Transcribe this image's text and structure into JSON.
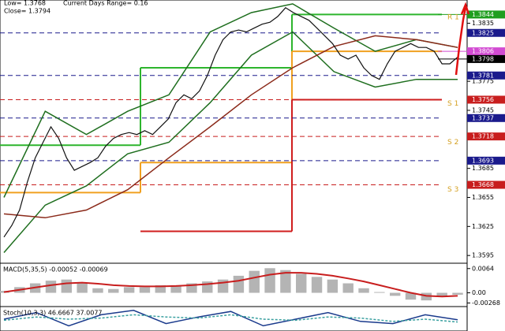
{
  "chart_data": {
    "type": "line",
    "annotations": [
      "Low= 1.3768",
      "Current Days Range= 0.16",
      "Close= 1.3794"
    ],
    "ylim": [
      1.3587,
      1.3859
    ],
    "yticks": [
      1.3835,
      1.3775,
      1.3745,
      1.3685,
      1.3655,
      1.3625,
      1.3595
    ],
    "levels": [
      {
        "value": 1.3844,
        "color": "#1f9e1f",
        "text_color": "#ffffff",
        "dashed": false
      },
      {
        "value": 1.3825,
        "color": "#1a1a8c",
        "text_color": "#ffffff",
        "dashed": true
      },
      {
        "value": 1.3806,
        "color": "#d24bd2",
        "text_color": "#ffffff",
        "dashed": false
      },
      {
        "value": 1.3798,
        "color": "#000000",
        "text_color": "#ffffff",
        "dashed": false
      },
      {
        "value": 1.3781,
        "color": "#1a1a8c",
        "text_color": "#ffffff",
        "dashed": true
      },
      {
        "value": 1.3756,
        "color": "#c81e1e",
        "text_color": "#ffffff",
        "dashed": true
      },
      {
        "value": 1.3737,
        "color": "#1a1a8c",
        "text_color": "#ffffff",
        "dashed": true
      },
      {
        "value": 1.3718,
        "color": "#c81e1e",
        "text_color": "#ffffff",
        "dashed": true
      },
      {
        "value": 1.3693,
        "color": "#1a1a8c",
        "text_color": "#ffffff",
        "dashed": true
      },
      {
        "value": 1.3668,
        "color": "#c81e1e",
        "text_color": "#ffffff",
        "dashed": true
      }
    ],
    "pivot_labels": [
      {
        "text": "R 1",
        "value": 1.3841
      },
      {
        "text": "S 1",
        "value": 1.3752
      },
      {
        "text": "S 2",
        "value": 1.3712
      },
      {
        "text": "S 3",
        "value": 1.3663
      }
    ],
    "series": [
      {
        "color": "#1e6e1e",
        "values": [
          1.3655,
          1.3744,
          1.372,
          1.3744,
          1.3761,
          1.3826,
          1.3846,
          1.3855,
          1.383,
          1.3806,
          1.3818,
          1.381
        ]
      },
      {
        "color": "#1e6e1e",
        "values": [
          1.3598,
          1.3647,
          1.3667,
          1.37,
          1.3712,
          1.3753,
          1.3802,
          1.3826,
          1.3785,
          1.3769,
          1.3777,
          1.3777
        ]
      },
      {
        "color": "#8b2a1a",
        "values": [
          1.3638,
          1.3634,
          1.3642,
          1.3663,
          1.3696,
          1.3728,
          1.3761,
          1.3789,
          1.3811,
          1.3822,
          1.3818,
          1.381
        ]
      },
      {
        "color": "#111111",
        "values": [
          1.3614,
          1.3626,
          1.3642,
          1.3671,
          1.3696,
          1.3712,
          1.3728,
          1.3716,
          1.3696,
          1.3683,
          1.3687,
          1.3691,
          1.3696,
          1.3708,
          1.3716,
          1.372,
          1.3722,
          1.372,
          1.3724,
          1.372,
          1.3728,
          1.3736,
          1.3753,
          1.3761,
          1.3757,
          1.3765,
          1.3781,
          1.3802,
          1.3818,
          1.3826,
          1.3828,
          1.3826,
          1.383,
          1.3834,
          1.3836,
          1.3842,
          1.3851,
          1.3846,
          1.3842,
          1.3838,
          1.383,
          1.3822,
          1.3814,
          1.3802,
          1.3798,
          1.3802,
          1.3789,
          1.3781,
          1.3777,
          1.3793,
          1.3806,
          1.381,
          1.3814,
          1.381,
          1.381,
          1.3806,
          1.3793,
          1.3793,
          1.38
        ]
      }
    ],
    "pivot_history": [
      {
        "color": "#2db52d",
        "values": [
          1.3709,
          1.3789,
          1.3844
        ]
      },
      {
        "color": "#f0a020",
        "values": [
          1.366,
          1.3691,
          1.3806
        ]
      },
      {
        "color": "#d01e1e",
        "values": [
          null,
          1.362,
          1.3756
        ]
      }
    ],
    "macd": {
      "label": "MACD(5,35,5) -0.00052 -0.00069",
      "ylim": [
        -0.0028,
        0.0076
      ],
      "yticks": [
        0.0064,
        {
          "value": 0,
          "label": "0.00"
        },
        -0.00268
      ],
      "histogram": {
        "color": "#b4b4b4",
        "values": [
          0.0005,
          0.0015,
          0.0025,
          0.0032,
          0.0035,
          0.0025,
          0.0012,
          0.001,
          0.0015,
          0.0015,
          0.002,
          0.002,
          0.0025,
          0.003,
          0.0035,
          0.0045,
          0.0058,
          0.0065,
          0.006,
          0.005,
          0.0042,
          0.0035,
          0.0025,
          0.0012,
          0.0002,
          -0.0008,
          -0.0018,
          -0.002,
          -0.001,
          -0.0005
        ]
      },
      "signal": {
        "color": "#c81e1e",
        "values": [
          0.0002,
          0.0008,
          0.0014,
          0.002,
          0.0025,
          0.0027,
          0.0024,
          0.002,
          0.0018,
          0.0017,
          0.0017,
          0.0018,
          0.002,
          0.0023,
          0.0027,
          0.0032,
          0.004,
          0.0048,
          0.0053,
          0.0053,
          0.005,
          0.0045,
          0.0038,
          0.003,
          0.002,
          0.001,
          0,
          -0.0008,
          -0.001,
          -0.0008
        ]
      }
    },
    "stoch": {
      "label": "Stoch(10,3,3) 46.6667 37.0077",
      "ylim": [
        0,
        100
      ],
      "series": [
        {
          "color": "#1a3a8c",
          "values": [
            50,
            80,
            20,
            70,
            90,
            30,
            60,
            85,
            20,
            50,
            80,
            40,
            30,
            70,
            47
          ]
        },
        {
          "color": "#3aa0a0",
          "values": [
            45,
            60,
            50,
            55,
            70,
            60,
            55,
            70,
            50,
            45,
            60,
            55,
            40,
            50,
            37
          ]
        }
      ]
    }
  }
}
